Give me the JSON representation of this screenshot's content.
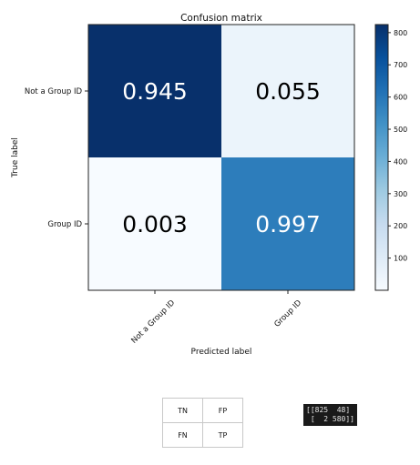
{
  "chart_data": {
    "type": "heatmap",
    "title": "Confusion matrix",
    "xlabel": "Predicted label",
    "ylabel": "True label",
    "x_tick_labels": [
      "Not a Group ID",
      "Group ID"
    ],
    "y_tick_labels": [
      "Not a Group ID",
      "Group ID"
    ],
    "cell_text": [
      [
        "0.945",
        "0.055"
      ],
      [
        "0.003",
        "0.997"
      ]
    ],
    "counts": [
      [
        825,
        48
      ],
      [
        2,
        580
      ]
    ],
    "colorbar": {
      "min": 0,
      "max": 825,
      "ticks": [
        100,
        200,
        300,
        400,
        500,
        600,
        700,
        800
      ]
    },
    "colormap": {
      "low": "#f7fbff",
      "mid": "#6baed6",
      "high": "#08306b"
    }
  },
  "legend_table": {
    "cells": [
      [
        "TN",
        "FP"
      ],
      [
        "FN",
        "TP"
      ]
    ]
  },
  "matrix_printout": {
    "line1": "[[825  48]",
    "line2": " [  2 580]]"
  }
}
